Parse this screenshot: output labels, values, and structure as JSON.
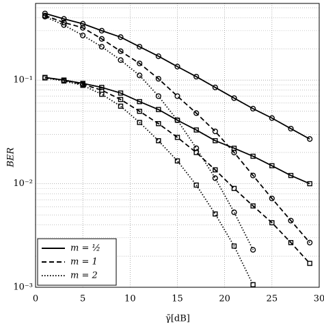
{
  "chart_data": {
    "type": "line",
    "xlabel": "γ̄[dB]",
    "ylabel": "BER",
    "x": [
      1,
      3,
      5,
      7,
      9,
      11,
      13,
      15,
      17,
      19,
      21,
      23,
      25,
      27,
      29
    ],
    "xlim": [
      0,
      30
    ],
    "xticks": [
      0,
      5,
      10,
      15,
      20,
      25,
      30
    ],
    "ylim": [
      0.001,
      0.55
    ],
    "log_y": true,
    "grid": true,
    "yticks": [
      {
        "value": 0.001,
        "label": "10⁻³"
      },
      {
        "value": 0.01,
        "label": "10⁻²"
      },
      {
        "value": 0.1,
        "label": "10⁻¹"
      }
    ],
    "yminorticks": [
      0.002,
      0.003,
      0.004,
      0.005,
      0.006,
      0.007,
      0.008,
      0.009,
      0.02,
      0.03,
      0.04,
      0.05,
      0.06,
      0.07,
      0.08,
      0.09,
      0.2,
      0.3,
      0.4,
      0.5
    ],
    "legend_position": "lower left",
    "legend": [
      {
        "label": "m = ½",
        "dash": "solid"
      },
      {
        "label": "m = 1",
        "dash": "dashed"
      },
      {
        "label": "m = 2",
        "dash": "dotted"
      }
    ],
    "series": [
      {
        "dash": "solid",
        "marker": "circle",
        "color": "#000000",
        "values": [
          0.44,
          0.39,
          0.35,
          0.3,
          0.26,
          0.21,
          0.17,
          0.135,
          0.108,
          0.085,
          0.067,
          0.053,
          0.043,
          0.034,
          0.027
        ]
      },
      {
        "dash": "dashed",
        "marker": "circle",
        "color": "#000000",
        "values": [
          0.42,
          0.36,
          0.32,
          0.25,
          0.19,
          0.145,
          0.103,
          0.07,
          0.048,
          0.032,
          0.02,
          0.012,
          0.0072,
          0.0044,
          0.0027
        ]
      },
      {
        "dash": "dotted",
        "marker": "circle",
        "color": "#000000",
        "values": [
          0.41,
          0.34,
          0.27,
          0.21,
          0.156,
          0.111,
          0.07,
          0.041,
          0.022,
          0.0113,
          0.0053,
          0.0023,
          null,
          null,
          null
        ]
      },
      {
        "dash": "solid",
        "marker": "square",
        "color": "#000000",
        "values": [
          0.106,
          0.1,
          0.093,
          0.085,
          0.075,
          0.062,
          0.052,
          0.041,
          0.033,
          0.026,
          0.022,
          0.0184,
          0.0149,
          0.012,
          0.01
        ]
      },
      {
        "dash": "dashed",
        "marker": "square",
        "color": "#000000",
        "values": [
          0.106,
          0.1,
          0.091,
          0.08,
          0.065,
          0.05,
          0.038,
          0.028,
          0.02,
          0.0136,
          0.009,
          0.0061,
          0.0042,
          0.0027,
          0.0017
        ]
      },
      {
        "dash": "dotted",
        "marker": "square",
        "color": "#000000",
        "values": [
          0.105,
          0.098,
          0.089,
          0.073,
          0.056,
          0.039,
          0.026,
          0.0166,
          0.0097,
          0.0051,
          0.0025,
          0.00106,
          null,
          null,
          null
        ]
      }
    ]
  }
}
